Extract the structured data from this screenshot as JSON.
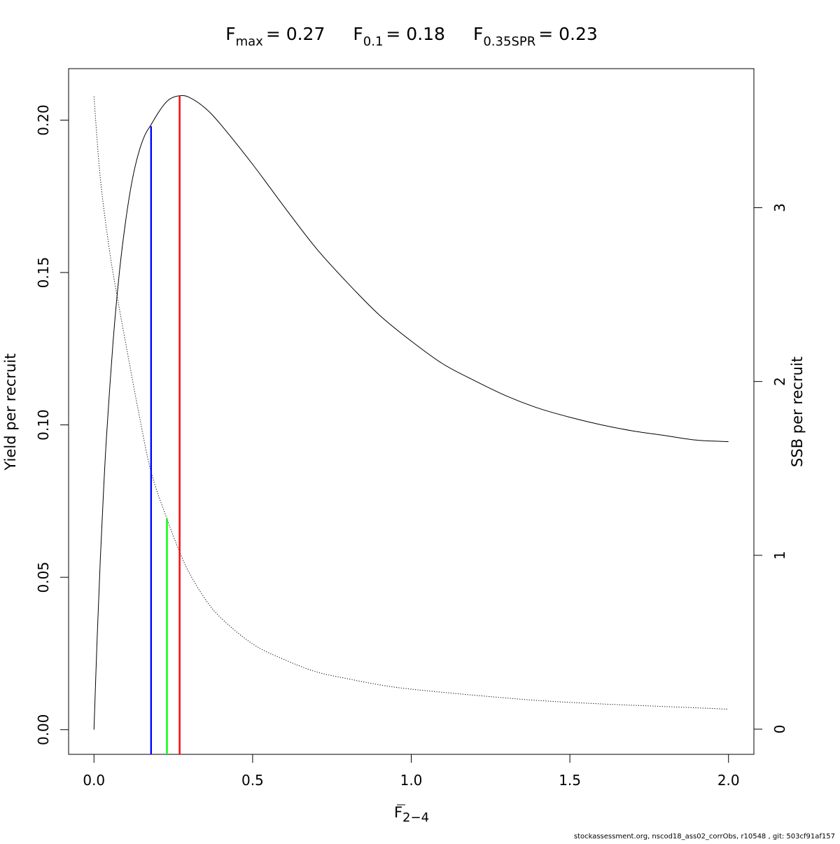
{
  "chart_data": {
    "type": "line",
    "title": {
      "fmax": {
        "symbol": "F",
        "sub": "max",
        "value": "= 0.27"
      },
      "f01": {
        "symbol": "F",
        "sub": "0.1",
        "value": "= 0.18"
      },
      "fspr": {
        "symbol": "F",
        "sub": "0.35SPR",
        "value": "= 0.23"
      }
    },
    "xlabel": {
      "symbol": "F",
      "sub": "2−4"
    },
    "ylabel": "Yield per recruit",
    "y2label": "SSB per recruit",
    "xlim": [
      -0.08,
      2.08
    ],
    "ylim": [
      -0.0081,
      0.2169
    ],
    "y2lim": [
      -0.145,
      3.8
    ],
    "x_ticks": [
      {
        "value": 0.0,
        "label": "0.0"
      },
      {
        "value": 0.5,
        "label": "0.5"
      },
      {
        "value": 1.0,
        "label": "1.0"
      },
      {
        "value": 1.5,
        "label": "1.5"
      },
      {
        "value": 2.0,
        "label": "2.0"
      }
    ],
    "y_ticks": [
      {
        "value": 0.0,
        "label": "0.00"
      },
      {
        "value": 0.05,
        "label": "0.05"
      },
      {
        "value": 0.1,
        "label": "0.10"
      },
      {
        "value": 0.15,
        "label": "0.15"
      },
      {
        "value": 0.2,
        "label": "0.20"
      }
    ],
    "y2_ticks": [
      {
        "value": 0,
        "label": "0"
      },
      {
        "value": 1,
        "label": "1"
      },
      {
        "value": 2,
        "label": "2"
      },
      {
        "value": 3,
        "label": "3"
      }
    ],
    "grid": false,
    "series": [
      {
        "axis": "left",
        "style": "solid",
        "color": "#000000",
        "x": [
          0,
          0.01,
          0.02,
          0.03,
          0.04,
          0.06,
          0.08,
          0.1,
          0.12,
          0.14,
          0.16,
          0.18,
          0.2,
          0.22,
          0.24,
          0.27,
          0.3,
          0.35,
          0.4,
          0.5,
          0.6,
          0.7,
          0.8,
          0.9,
          1.0,
          1.1,
          1.2,
          1.3,
          1.4,
          1.5,
          1.6,
          1.7,
          1.8,
          1.9,
          2.0
        ],
        "y": [
          0,
          0.03,
          0.056,
          0.078,
          0.097,
          0.127,
          0.15,
          0.167,
          0.18,
          0.189,
          0.195,
          0.1985,
          0.202,
          0.205,
          0.207,
          0.208,
          0.2075,
          0.204,
          0.1985,
          0.1855,
          0.1715,
          0.158,
          0.1465,
          0.136,
          0.1275,
          0.12,
          0.1145,
          0.1095,
          0.1055,
          0.1025,
          0.1,
          0.098,
          0.0965,
          0.095,
          0.0945
        ]
      },
      {
        "axis": "right",
        "style": "dotted",
        "color": "#000000",
        "x": [
          0,
          0.02,
          0.05,
          0.08,
          0.1,
          0.14,
          0.18,
          0.23,
          0.27,
          0.3,
          0.35,
          0.4,
          0.5,
          0.6,
          0.7,
          0.8,
          0.9,
          1.0,
          1.2,
          1.4,
          1.6,
          1.8,
          2.0
        ],
        "y": [
          3.64,
          3.17,
          2.74,
          2.42,
          2.22,
          1.83,
          1.48,
          1.21,
          1.02,
          0.9,
          0.75,
          0.64,
          0.49,
          0.4,
          0.33,
          0.29,
          0.255,
          0.23,
          0.195,
          0.165,
          0.145,
          0.13,
          0.115
        ]
      }
    ],
    "reference_lines": [
      {
        "x": 0.18,
        "axis": "left",
        "y": 0.198,
        "color": "#0000ff"
      },
      {
        "x": 0.23,
        "axis": "right",
        "y": 1.21,
        "color": "#00ff00"
      },
      {
        "x": 0.27,
        "axis": "left",
        "y": 0.208,
        "color": "#ff0000"
      }
    ]
  },
  "footer": "stockassessment.org, nscod18_ass02_corrObs, r10548 , git: 503cf91af157"
}
